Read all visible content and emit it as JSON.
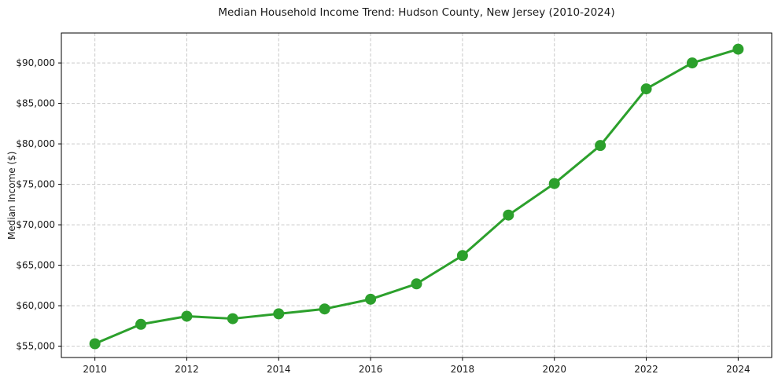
{
  "chart_data": {
    "type": "line",
    "title": "Median Household Income Trend: Hudson County, New Jersey (2010-2024)",
    "xlabel": "",
    "ylabel": "Median Income ($)",
    "x": [
      2010,
      2011,
      2012,
      2013,
      2014,
      2015,
      2016,
      2017,
      2018,
      2019,
      2020,
      2021,
      2022,
      2023,
      2024
    ],
    "values": [
      55300,
      57700,
      58700,
      58400,
      59000,
      59600,
      60800,
      62700,
      66200,
      71200,
      75100,
      79800,
      86800,
      90000,
      91700
    ],
    "xtick_values": [
      2010,
      2012,
      2014,
      2016,
      2018,
      2020,
      2022,
      2024
    ],
    "xtick_labels": [
      "2010",
      "2012",
      "2014",
      "2016",
      "2018",
      "2020",
      "2022",
      "2024"
    ],
    "ytick_values": [
      55000,
      60000,
      65000,
      70000,
      75000,
      80000,
      85000,
      90000
    ],
    "ytick_labels": [
      "$55,000",
      "$60,000",
      "$65,000",
      "$70,000",
      "$75,000",
      "$80,000",
      "$85,000",
      "$90,000"
    ],
    "xlim": [
      2009.27,
      2024.73
    ],
    "ylim": [
      53600,
      93700
    ],
    "grid": true,
    "grid_style": "dashed",
    "legend_position": "none",
    "line_color": "#2ca02c",
    "marker": "circle",
    "marker_radius": 7,
    "line_width": 3,
    "grid_color": "#c9c9c9",
    "axis_color": "#000000",
    "text_color": "#1a1a1a",
    "background_color": "#ffffff"
  }
}
